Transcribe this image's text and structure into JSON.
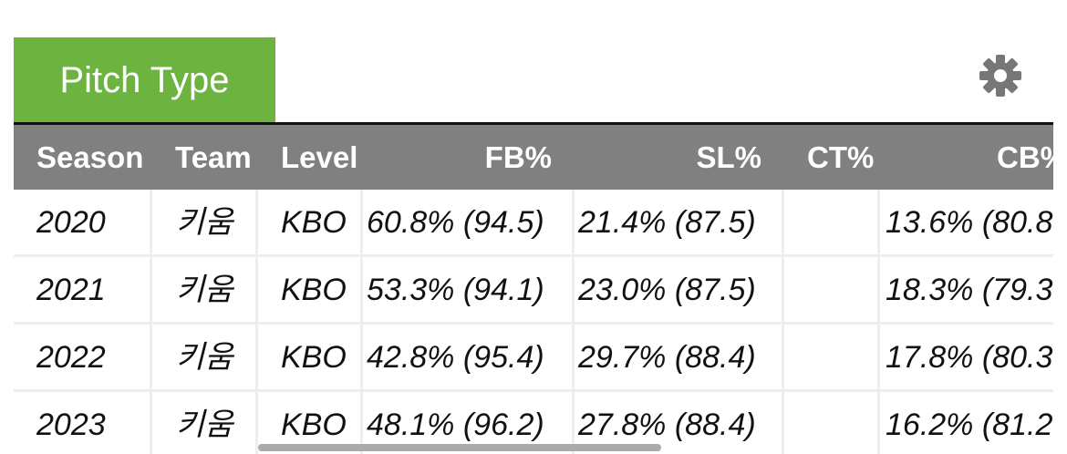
{
  "header": {
    "tab": "Pitch Type"
  },
  "table": {
    "columns": [
      "Season",
      "Team",
      "Level",
      "FB%",
      "SL%",
      "CT%",
      "CB%"
    ],
    "rows": [
      [
        "2020",
        "키움",
        "KBO",
        "60.8% (94.5)",
        "21.4% (87.5)",
        null,
        "13.6% (80.8"
      ],
      [
        "2021",
        "키움",
        "KBO",
        "53.3% (94.1)",
        "23.0% (87.5)",
        null,
        "18.3% (79.3"
      ],
      [
        "2022",
        "키움",
        "KBO",
        "42.8% (95.4)",
        "29.7% (88.4)",
        null,
        "17.8% (80.3"
      ],
      [
        "2023",
        "키움",
        "KBO",
        "48.1% (96.2)",
        "27.8% (88.4)",
        null,
        "16.2% (81.2"
      ]
    ]
  }
}
